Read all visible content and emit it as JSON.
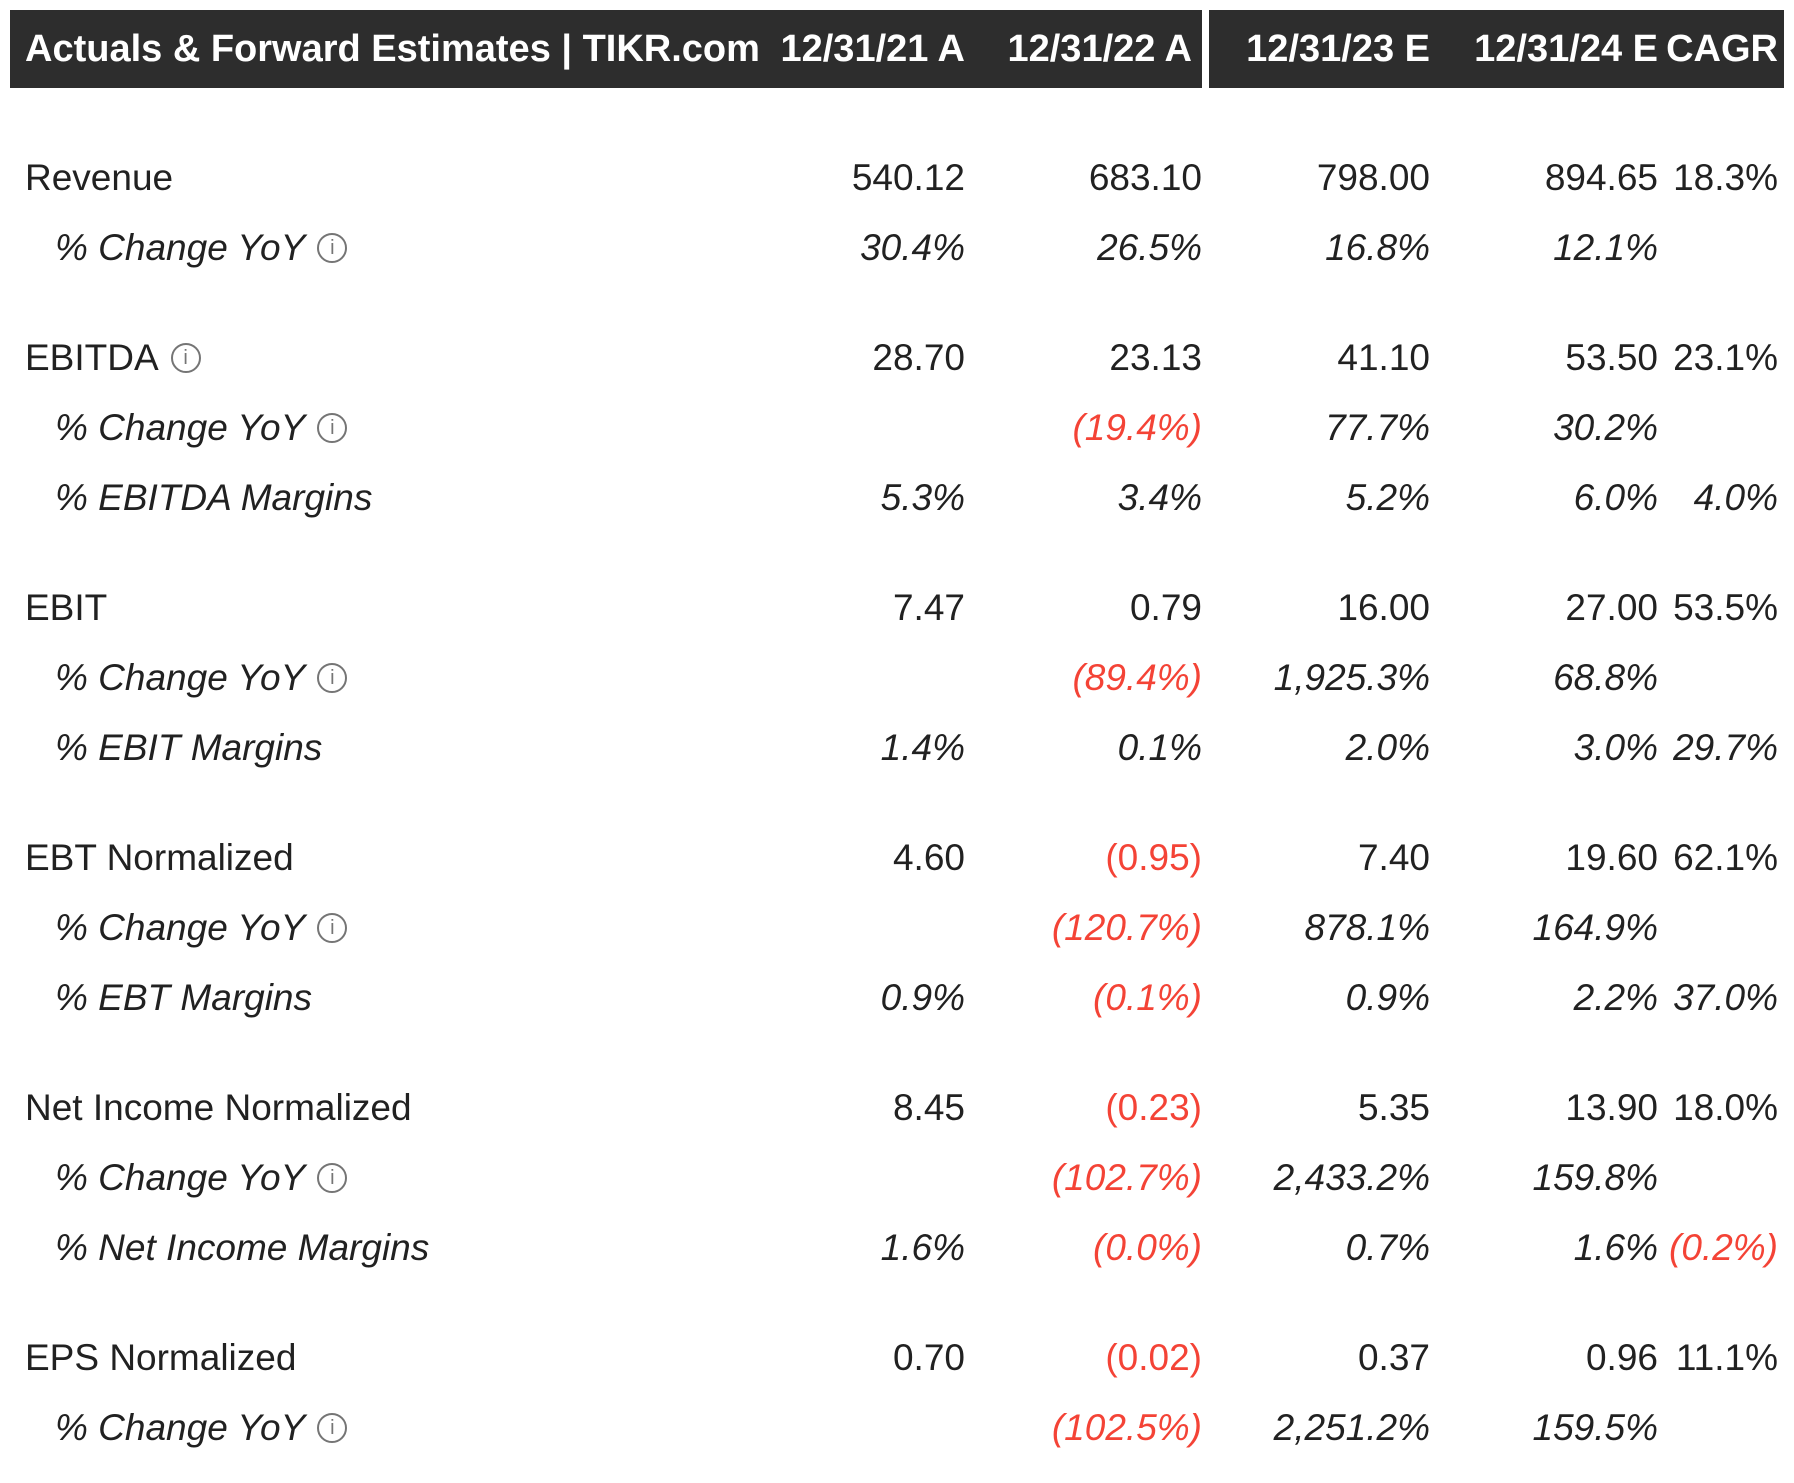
{
  "colors": {
    "header_bg": "#2d2d2d",
    "header_text": "#ffffff",
    "body_text": "#212121",
    "negative_red": "#f44336",
    "info_icon_gray": "#757575",
    "divider_white": "#ffffff"
  },
  "icons": {
    "info_icon_glyph": "i"
  },
  "chart_data": {
    "type": "table",
    "title": "Actuals & Forward Estimates | TIKR.com",
    "columns": [
      "12/31/21 A",
      "12/31/22 A",
      "12/31/23 E",
      "12/31/24 E",
      "CAGR"
    ],
    "actual_columns": [
      "12/31/21 A",
      "12/31/22 A"
    ],
    "estimate_columns": [
      "12/31/23 E",
      "12/31/24 E"
    ],
    "negative_convention": "values in parentheses are shown in red",
    "groups": [
      {
        "rows": [
          {
            "label": "Revenue",
            "sub": false,
            "info": false,
            "values": [
              "540.12",
              "683.10",
              "798.00",
              "894.65",
              "18.3%"
            ]
          },
          {
            "label": "% Change YoY",
            "sub": true,
            "info": true,
            "values": [
              "30.4%",
              "26.5%",
              "16.8%",
              "12.1%",
              ""
            ]
          }
        ]
      },
      {
        "rows": [
          {
            "label": "EBITDA",
            "sub": false,
            "info": true,
            "values": [
              "28.70",
              "23.13",
              "41.10",
              "53.50",
              "23.1%"
            ]
          },
          {
            "label": "% Change YoY",
            "sub": true,
            "info": true,
            "values": [
              "",
              "(19.4%)",
              "77.7%",
              "30.2%",
              ""
            ]
          },
          {
            "label": "% EBITDA Margins",
            "sub": true,
            "info": false,
            "values": [
              "5.3%",
              "3.4%",
              "5.2%",
              "6.0%",
              "4.0%"
            ]
          }
        ]
      },
      {
        "rows": [
          {
            "label": "EBIT",
            "sub": false,
            "info": false,
            "values": [
              "7.47",
              "0.79",
              "16.00",
              "27.00",
              "53.5%"
            ]
          },
          {
            "label": "% Change YoY",
            "sub": true,
            "info": true,
            "values": [
              "",
              "(89.4%)",
              "1,925.3%",
              "68.8%",
              ""
            ]
          },
          {
            "label": "% EBIT Margins",
            "sub": true,
            "info": false,
            "values": [
              "1.4%",
              "0.1%",
              "2.0%",
              "3.0%",
              "29.7%"
            ]
          }
        ]
      },
      {
        "rows": [
          {
            "label": "EBT Normalized",
            "sub": false,
            "info": false,
            "values": [
              "4.60",
              "(0.95)",
              "7.40",
              "19.60",
              "62.1%"
            ]
          },
          {
            "label": "% Change YoY",
            "sub": true,
            "info": true,
            "values": [
              "",
              "(120.7%)",
              "878.1%",
              "164.9%",
              ""
            ]
          },
          {
            "label": "% EBT Margins",
            "sub": true,
            "info": false,
            "values": [
              "0.9%",
              "(0.1%)",
              "0.9%",
              "2.2%",
              "37.0%"
            ]
          }
        ]
      },
      {
        "rows": [
          {
            "label": "Net Income Normalized",
            "sub": false,
            "info": false,
            "values": [
              "8.45",
              "(0.23)",
              "5.35",
              "13.90",
              "18.0%"
            ]
          },
          {
            "label": "% Change YoY",
            "sub": true,
            "info": true,
            "values": [
              "",
              "(102.7%)",
              "2,433.2%",
              "159.8%",
              ""
            ]
          },
          {
            "label": "% Net Income Margins",
            "sub": true,
            "info": false,
            "values": [
              "1.6%",
              "(0.0%)",
              "0.7%",
              "1.6%",
              "(0.2%)"
            ]
          }
        ]
      },
      {
        "rows": [
          {
            "label": "EPS Normalized",
            "sub": false,
            "info": false,
            "values": [
              "0.70",
              "(0.02)",
              "0.37",
              "0.96",
              "11.1%"
            ]
          },
          {
            "label": "% Change YoY",
            "sub": true,
            "info": true,
            "values": [
              "",
              "(102.5%)",
              "2,251.2%",
              "159.5%",
              ""
            ]
          }
        ]
      }
    ]
  }
}
